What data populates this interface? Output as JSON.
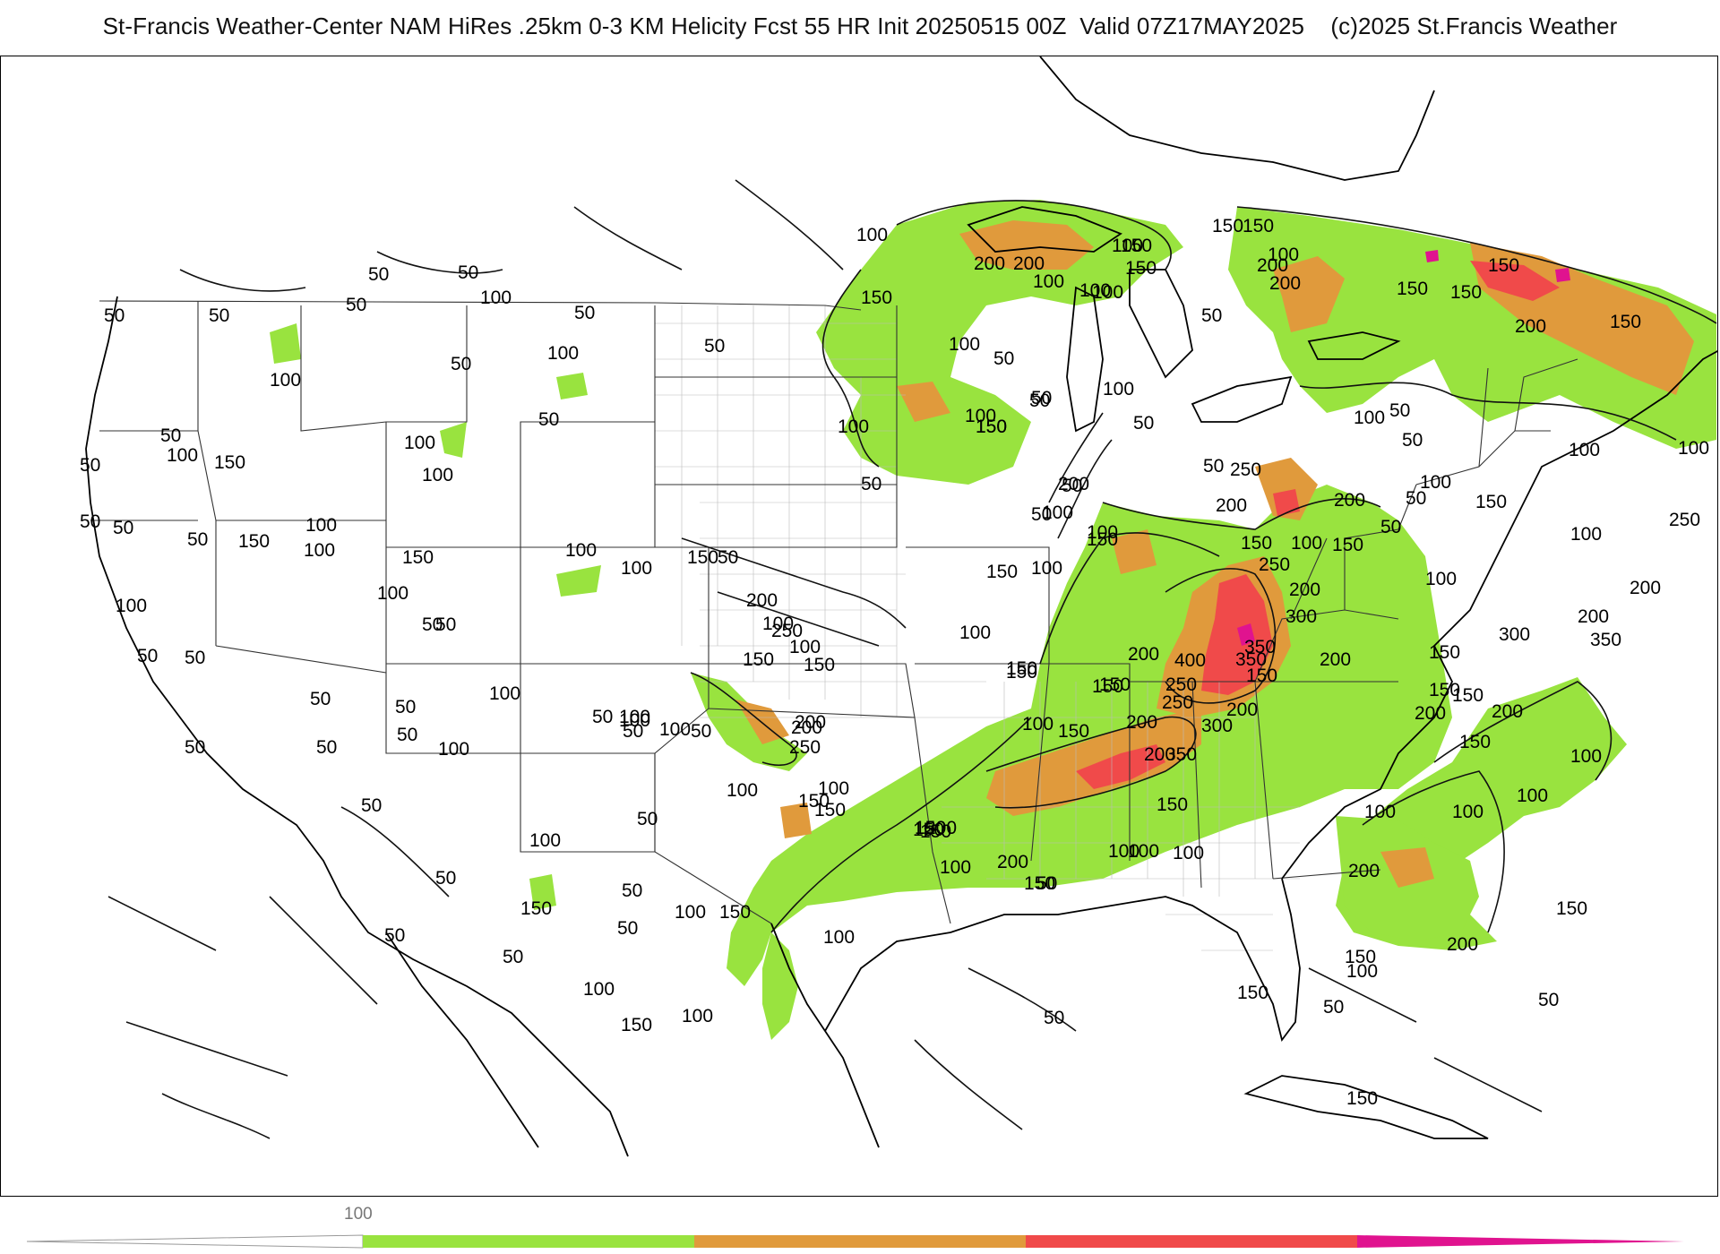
{
  "title": "St-Francis Weather-Center NAM HiRes .25km 0-3 KM Helicity Fcst 55 HR Init 20250515 00Z  Valid 07Z17MAY2025    (c)2025 St.Francis Weather",
  "colors": {
    "band_100_150": "#99e33f",
    "band_150_250": "#e09a3c",
    "band_250_350": "#f04a4a",
    "band_350_plus": "#e0138f",
    "contour": "#111111",
    "state_lines": "#333333",
    "county_lines": "#bbbbbb"
  },
  "colorbar": {
    "label": "100"
  },
  "contour_labels": [
    {
      "text": "100"
    },
    {
      "text": "50"
    },
    {
      "text": "50"
    },
    {
      "text": "100"
    },
    {
      "text": "50"
    },
    {
      "text": "50"
    },
    {
      "text": "50"
    },
    {
      "text": "50"
    },
    {
      "text": "100"
    },
    {
      "text": "50"
    },
    {
      "text": "100"
    },
    {
      "text": "50"
    },
    {
      "text": "100"
    },
    {
      "text": "50"
    },
    {
      "text": "50"
    },
    {
      "text": "100"
    },
    {
      "text": "150"
    },
    {
      "text": "100"
    },
    {
      "text": "50"
    },
    {
      "text": "150"
    },
    {
      "text": "100"
    },
    {
      "text": "150"
    },
    {
      "text": "100"
    },
    {
      "text": "100"
    },
    {
      "text": "150"
    },
    {
      "text": "50"
    },
    {
      "text": "100"
    },
    {
      "text": "50"
    },
    {
      "text": "100"
    },
    {
      "text": "50"
    },
    {
      "text": "50"
    },
    {
      "text": "100"
    },
    {
      "text": "50"
    },
    {
      "text": "50"
    },
    {
      "text": "50"
    },
    {
      "text": "50"
    },
    {
      "text": "100"
    },
    {
      "text": "50"
    },
    {
      "text": "100"
    },
    {
      "text": "50"
    },
    {
      "text": "100"
    },
    {
      "text": "50"
    },
    {
      "text": "100"
    },
    {
      "text": "50"
    },
    {
      "text": "100"
    },
    {
      "text": "150"
    },
    {
      "text": "50"
    },
    {
      "text": "50"
    },
    {
      "text": "100"
    },
    {
      "text": "50"
    },
    {
      "text": "50"
    },
    {
      "text": "100"
    },
    {
      "text": "50"
    },
    {
      "text": "50"
    },
    {
      "text": "150"
    },
    {
      "text": "100"
    },
    {
      "text": "100"
    },
    {
      "text": "50"
    },
    {
      "text": "50"
    },
    {
      "text": "150"
    },
    {
      "text": "50"
    },
    {
      "text": "100"
    },
    {
      "text": "50"
    },
    {
      "text": "150"
    },
    {
      "text": "50"
    },
    {
      "text": "100"
    },
    {
      "text": "100"
    },
    {
      "text": "150"
    },
    {
      "text": "100"
    },
    {
      "text": "200"
    },
    {
      "text": "250"
    },
    {
      "text": "150"
    },
    {
      "text": "100"
    },
    {
      "text": "200"
    },
    {
      "text": "250"
    },
    {
      "text": "150"
    },
    {
      "text": "100"
    },
    {
      "text": "150"
    },
    {
      "text": "200"
    },
    {
      "text": "200"
    },
    {
      "text": "150"
    },
    {
      "text": "100"
    },
    {
      "text": "150"
    },
    {
      "text": "50"
    },
    {
      "text": "150"
    },
    {
      "text": "100"
    },
    {
      "text": "50"
    },
    {
      "text": "50"
    },
    {
      "text": "150"
    },
    {
      "text": "200"
    },
    {
      "text": "200"
    },
    {
      "text": "150"
    },
    {
      "text": "100"
    },
    {
      "text": "100"
    },
    {
      "text": "150"
    },
    {
      "text": "50"
    },
    {
      "text": "150"
    },
    {
      "text": "100"
    },
    {
      "text": "100"
    },
    {
      "text": "50"
    },
    {
      "text": "50"
    },
    {
      "text": "100"
    },
    {
      "text": "50"
    },
    {
      "text": "100"
    },
    {
      "text": "200"
    },
    {
      "text": "150"
    },
    {
      "text": "50"
    },
    {
      "text": "100"
    },
    {
      "text": "100"
    },
    {
      "text": "150"
    },
    {
      "text": "100"
    },
    {
      "text": "150"
    },
    {
      "text": "250"
    },
    {
      "text": "200"
    },
    {
      "text": "200"
    },
    {
      "text": "50"
    },
    {
      "text": "150"
    },
    {
      "text": "100"
    },
    {
      "text": "150"
    },
    {
      "text": "250"
    },
    {
      "text": "200"
    },
    {
      "text": "300"
    },
    {
      "text": "350"
    },
    {
      "text": "400"
    },
    {
      "text": "200"
    },
    {
      "text": "150"
    },
    {
      "text": "250"
    },
    {
      "text": "350"
    },
    {
      "text": "150"
    },
    {
      "text": "200"
    },
    {
      "text": "150"
    },
    {
      "text": "200"
    },
    {
      "text": "250"
    },
    {
      "text": "300"
    },
    {
      "text": "200"
    },
    {
      "text": "150"
    },
    {
      "text": "100"
    },
    {
      "text": "150"
    },
    {
      "text": "350"
    },
    {
      "text": "200"
    },
    {
      "text": "150"
    },
    {
      "text": "100"
    },
    {
      "text": "200"
    },
    {
      "text": "50"
    },
    {
      "text": "100"
    },
    {
      "text": "100"
    },
    {
      "text": "150"
    },
    {
      "text": "50"
    },
    {
      "text": "150"
    },
    {
      "text": "100"
    },
    {
      "text": "50"
    },
    {
      "text": "150"
    },
    {
      "text": "200"
    },
    {
      "text": "100"
    },
    {
      "text": "100"
    },
    {
      "text": "150"
    },
    {
      "text": "200"
    },
    {
      "text": "100"
    },
    {
      "text": "150"
    },
    {
      "text": "100"
    },
    {
      "text": "150"
    },
    {
      "text": "200"
    },
    {
      "text": "150"
    },
    {
      "text": "50"
    },
    {
      "text": "150"
    },
    {
      "text": "300"
    },
    {
      "text": "350"
    },
    {
      "text": "250"
    },
    {
      "text": "200"
    },
    {
      "text": "200"
    },
    {
      "text": "150"
    },
    {
      "text": "200"
    },
    {
      "text": "100"
    },
    {
      "text": "50"
    },
    {
      "text": "100"
    },
    {
      "text": "150"
    },
    {
      "text": "100"
    },
    {
      "text": "50"
    },
    {
      "text": "50"
    },
    {
      "text": "100"
    },
    {
      "text": "50"
    },
    {
      "text": "100"
    },
    {
      "text": "100"
    },
    {
      "text": "150"
    },
    {
      "text": "200"
    },
    {
      "text": "100"
    },
    {
      "text": "150"
    },
    {
      "text": "150"
    },
    {
      "text": "100"
    },
    {
      "text": "200"
    },
    {
      "text": "150"
    },
    {
      "text": "150"
    },
    {
      "text": "200"
    },
    {
      "text": "150"
    },
    {
      "text": "100"
    },
    {
      "text": "50"
    },
    {
      "text": "100"
    },
    {
      "text": "150"
    },
    {
      "text": "50"
    }
  ]
}
